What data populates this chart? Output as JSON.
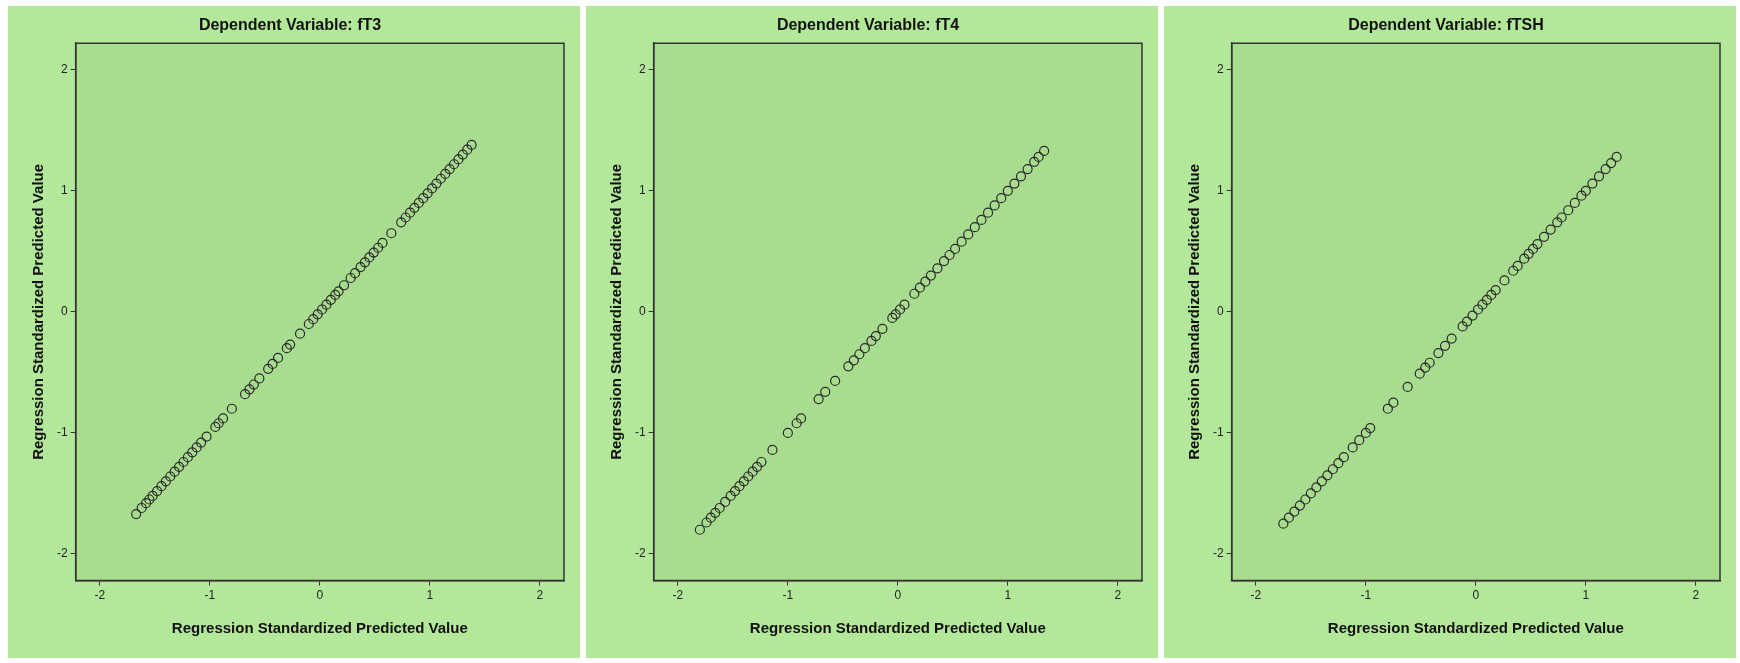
{
  "chart_data": [
    {
      "type": "scatter",
      "title": "Dependent Variable: fT3",
      "xlabel": "Regression Standardized Predicted Value",
      "ylabel": "Regression Standardized Predicted Value",
      "marker": "circle",
      "color": "#2a2a2a",
      "xlim": [
        -2.22,
        2.22
      ],
      "ylim": [
        -2.22,
        2.22
      ],
      "xticks": [
        -2,
        -1,
        0,
        1,
        2
      ],
      "yticks": [
        -2,
        -1,
        0,
        1,
        2
      ],
      "x": [
        -1.67,
        -1.62,
        -1.58,
        -1.55,
        -1.52,
        -1.48,
        -1.44,
        -1.4,
        -1.36,
        -1.32,
        -1.28,
        -1.24,
        -1.2,
        -1.16,
        -1.12,
        -1.08,
        -1.03,
        -0.95,
        -0.92,
        -0.88,
        -0.8,
        -0.68,
        -0.64,
        -0.6,
        -0.55,
        -0.47,
        -0.43,
        -0.38,
        -0.3,
        -0.27,
        -0.18,
        -0.1,
        -0.06,
        -0.02,
        0.02,
        0.06,
        0.1,
        0.14,
        0.17,
        0.22,
        0.28,
        0.32,
        0.37,
        0.41,
        0.45,
        0.49,
        0.53,
        0.57,
        0.65,
        0.74,
        0.78,
        0.82,
        0.86,
        0.9,
        0.94,
        0.98,
        1.02,
        1.06,
        1.1,
        1.14,
        1.18,
        1.22,
        1.26,
        1.3,
        1.34,
        1.38
      ],
      "values": [
        -1.67,
        -1.62,
        -1.58,
        -1.55,
        -1.52,
        -1.48,
        -1.44,
        -1.4,
        -1.36,
        -1.32,
        -1.28,
        -1.24,
        -1.2,
        -1.16,
        -1.12,
        -1.08,
        -1.03,
        -0.95,
        -0.92,
        -0.88,
        -0.8,
        -0.68,
        -0.64,
        -0.6,
        -0.55,
        -0.47,
        -0.43,
        -0.38,
        -0.3,
        -0.27,
        -0.18,
        -0.1,
        -0.06,
        -0.02,
        0.02,
        0.06,
        0.1,
        0.14,
        0.17,
        0.22,
        0.28,
        0.32,
        0.37,
        0.41,
        0.45,
        0.49,
        0.53,
        0.57,
        0.65,
        0.74,
        0.78,
        0.82,
        0.86,
        0.9,
        0.94,
        0.98,
        1.02,
        1.06,
        1.1,
        1.14,
        1.18,
        1.22,
        1.26,
        1.3,
        1.34,
        1.38
      ]
    },
    {
      "type": "scatter",
      "title": "Dependent Variable: fT4",
      "xlabel": "Regression Standardized Predicted Value",
      "ylabel": "Regression Standardized Predicted Value",
      "marker": "circle",
      "color": "#2a2a2a",
      "xlim": [
        -2.22,
        2.22
      ],
      "ylim": [
        -2.22,
        2.22
      ],
      "xticks": [
        -2,
        -1,
        0,
        1,
        2
      ],
      "yticks": [
        -2,
        -1,
        0,
        1,
        2
      ],
      "x": [
        -1.8,
        -1.74,
        -1.7,
        -1.66,
        -1.62,
        -1.57,
        -1.52,
        -1.48,
        -1.44,
        -1.4,
        -1.36,
        -1.32,
        -1.28,
        -1.24,
        -1.14,
        -1.0,
        -0.92,
        -0.88,
        -0.72,
        -0.66,
        -0.57,
        -0.45,
        -0.4,
        -0.35,
        -0.3,
        -0.24,
        -0.2,
        -0.14,
        -0.05,
        -0.02,
        0.02,
        0.06,
        0.15,
        0.2,
        0.25,
        0.3,
        0.36,
        0.42,
        0.47,
        0.52,
        0.58,
        0.64,
        0.7,
        0.76,
        0.82,
        0.88,
        0.94,
        1.0,
        1.06,
        1.12,
        1.18,
        1.24,
        1.28,
        1.33
      ],
      "values": [
        -1.8,
        -1.74,
        -1.7,
        -1.66,
        -1.62,
        -1.57,
        -1.52,
        -1.48,
        -1.44,
        -1.4,
        -1.36,
        -1.32,
        -1.28,
        -1.24,
        -1.14,
        -1.0,
        -0.92,
        -0.88,
        -0.72,
        -0.66,
        -0.57,
        -0.45,
        -0.4,
        -0.35,
        -0.3,
        -0.24,
        -0.2,
        -0.14,
        -0.05,
        -0.02,
        0.02,
        0.06,
        0.15,
        0.2,
        0.25,
        0.3,
        0.36,
        0.42,
        0.47,
        0.52,
        0.58,
        0.64,
        0.7,
        0.76,
        0.82,
        0.88,
        0.94,
        1.0,
        1.06,
        1.12,
        1.18,
        1.24,
        1.28,
        1.33
      ]
    },
    {
      "type": "scatter",
      "title": "Dependent Variable: fTSH",
      "xlabel": "Regression Standardized Predicted Value",
      "ylabel": "Regression Standardized Predicted Value",
      "marker": "circle",
      "color": "#2a2a2a",
      "xlim": [
        -2.22,
        2.22
      ],
      "ylim": [
        -2.22,
        2.22
      ],
      "xticks": [
        -2,
        -1,
        0,
        1,
        2
      ],
      "yticks": [
        -2,
        -1,
        0,
        1,
        2
      ],
      "x": [
        -1.75,
        -1.7,
        -1.65,
        -1.6,
        -1.55,
        -1.5,
        -1.45,
        -1.4,
        -1.35,
        -1.3,
        -1.25,
        -1.2,
        -1.12,
        -1.06,
        -1.0,
        -0.96,
        -0.8,
        -0.75,
        -0.62,
        -0.51,
        -0.46,
        -0.42,
        -0.34,
        -0.28,
        -0.22,
        -0.12,
        -0.08,
        -0.03,
        0.02,
        0.06,
        0.1,
        0.14,
        0.18,
        0.26,
        0.34,
        0.38,
        0.44,
        0.48,
        0.52,
        0.56,
        0.62,
        0.68,
        0.74,
        0.78,
        0.84,
        0.9,
        0.96,
        1.0,
        1.06,
        1.12,
        1.18,
        1.23,
        1.28
      ],
      "values": [
        -1.75,
        -1.7,
        -1.65,
        -1.6,
        -1.55,
        -1.5,
        -1.45,
        -1.4,
        -1.35,
        -1.3,
        -1.25,
        -1.2,
        -1.12,
        -1.06,
        -1.0,
        -0.96,
        -0.8,
        -0.75,
        -0.62,
        -0.51,
        -0.46,
        -0.42,
        -0.34,
        -0.28,
        -0.22,
        -0.12,
        -0.08,
        -0.03,
        0.02,
        0.06,
        0.1,
        0.14,
        0.18,
        0.26,
        0.34,
        0.38,
        0.44,
        0.48,
        0.52,
        0.56,
        0.62,
        0.68,
        0.74,
        0.78,
        0.84,
        0.9,
        0.96,
        1.0,
        1.06,
        1.12,
        1.18,
        1.23,
        1.28
      ]
    }
  ]
}
